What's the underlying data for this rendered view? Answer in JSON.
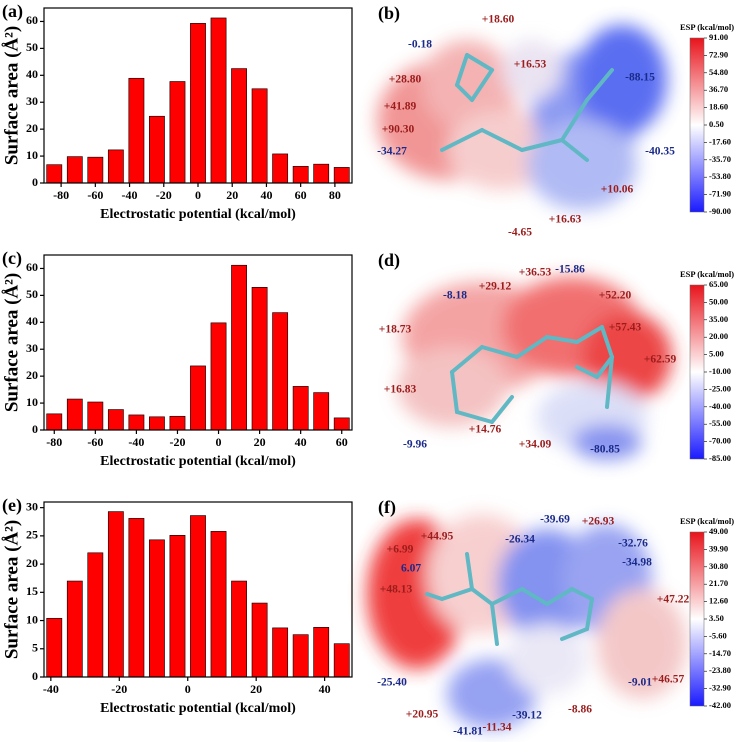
{
  "chart_data": [
    {
      "type": "histogram",
      "title": "(a)",
      "x_label": "Electrostatic potential (kcal/mol)",
      "y_label": "Surface area (Å²)",
      "bins": [
        -90,
        -78,
        -66,
        -54,
        -42,
        -30,
        -18,
        -6,
        6,
        18,
        30,
        42,
        54,
        66,
        78,
        90
      ],
      "values": [
        6.8,
        9.8,
        9.6,
        12.3,
        38.9,
        24.8,
        37.7,
        59.3,
        61.3,
        42.5,
        35.0,
        10.8,
        6.2,
        7.0,
        5.8
      ],
      "color": "#ff0000",
      "xlim": [
        -90,
        90
      ],
      "ylim": [
        0,
        65
      ],
      "xticks": [
        -80,
        -60,
        -40,
        -20,
        0,
        20,
        40,
        60,
        80
      ],
      "yticks": [
        0,
        10,
        20,
        30,
        40,
        50,
        60
      ]
    },
    {
      "type": "histogram",
      "title": "(c)",
      "x_label": "Electrostatic potential (kcal/mol)",
      "y_label": "Surface area (Å²)",
      "bins": [
        -85,
        -75,
        -65,
        -55,
        -45,
        -35,
        -25,
        -15,
        -5,
        5,
        15,
        25,
        35,
        45,
        55,
        65
      ],
      "values": [
        6.0,
        11.5,
        10.4,
        7.6,
        5.6,
        4.9,
        5.1,
        23.8,
        39.8,
        61.2,
        53.0,
        43.6,
        16.2,
        13.9,
        4.5
      ],
      "color": "#ff0000",
      "xlim": [
        -85,
        65
      ],
      "ylim": [
        0,
        65
      ],
      "xticks": [
        -80,
        -60,
        -40,
        -20,
        0,
        20,
        40,
        60
      ],
      "yticks": [
        0,
        10,
        20,
        30,
        40,
        50,
        60
      ]
    },
    {
      "type": "histogram",
      "title": "(e)",
      "x_label": "Electrostatic potential (kcal/mol)",
      "y_label": "Surface area (Å²)",
      "bins": [
        -42,
        -36,
        -30,
        -24,
        -18,
        -12,
        -6,
        0,
        6,
        12,
        18,
        24,
        30,
        36,
        42,
        48
      ],
      "values": [
        10.4,
        17.0,
        22.0,
        29.3,
        28.1,
        24.3,
        25.1,
        28.6,
        25.8,
        17.0,
        13.1,
        8.7,
        7.5,
        8.8,
        5.9
      ],
      "color": "#ff0000",
      "xlim": [
        -42,
        48
      ],
      "ylim": [
        0,
        31
      ],
      "xticks": [
        -40,
        -20,
        0,
        20,
        40
      ],
      "yticks": [
        0,
        5,
        10,
        15,
        20,
        25,
        30
      ]
    }
  ],
  "esp_maps": [
    {
      "label": "(b)",
      "colorbar_title": "ESP (kcal/mol)",
      "colorbar_ticks": [
        {
          "value": 91,
          "label": "91.00"
        },
        {
          "value": 72.9,
          "label": "72.90"
        },
        {
          "value": 54.8,
          "label": "54.80"
        },
        {
          "value": 36.7,
          "label": "36.70"
        },
        {
          "value": 18.6,
          "label": "18.60"
        },
        {
          "value": 0.5,
          "label": "0.50"
        },
        {
          "value": -17.6,
          "label": "-17.60"
        },
        {
          "value": -35.7,
          "label": "-35.70"
        },
        {
          "value": -53.8,
          "label": "-53.80"
        },
        {
          "value": -71.9,
          "label": "-71.90"
        },
        {
          "value": -90,
          "label": "-90.00"
        }
      ],
      "annotations": [
        {
          "text": "+18.60",
          "color": "#9b1c1c"
        },
        {
          "text": "-0.18",
          "color": "#1a2a8a"
        },
        {
          "text": "+16.53",
          "color": "#9b1c1c"
        },
        {
          "text": "-88.15",
          "color": "#1a2a8a"
        },
        {
          "text": "+28.80",
          "color": "#9b1c1c"
        },
        {
          "text": "+41.89",
          "color": "#9b1c1c"
        },
        {
          "text": "+90.30",
          "color": "#9b1c1c"
        },
        {
          "text": "-34.27",
          "color": "#1a2a8a"
        },
        {
          "text": "-40.35",
          "color": "#1a2a8a"
        },
        {
          "text": "+10.06",
          "color": "#9b1c1c"
        },
        {
          "text": "+16.63",
          "color": "#9b1c1c"
        },
        {
          "text": "-4.65",
          "color": "#9b1c1c"
        }
      ]
    },
    {
      "label": "(d)",
      "colorbar_title": "ESP (kcal/mol)",
      "colorbar_ticks": [
        {
          "value": 65,
          "label": "65.00"
        },
        {
          "value": 50,
          "label": "50.00"
        },
        {
          "value": 35,
          "label": "35.00"
        },
        {
          "value": 20,
          "label": "20.00"
        },
        {
          "value": 5,
          "label": "5.00"
        },
        {
          "value": -10,
          "label": "-10.00"
        },
        {
          "value": -25,
          "label": "-25.00"
        },
        {
          "value": -40,
          "label": "-40.00"
        },
        {
          "value": -55,
          "label": "-55.00"
        },
        {
          "value": -70,
          "label": "-70.00"
        },
        {
          "value": -85,
          "label": "-85.00"
        }
      ],
      "annotations": [
        {
          "text": "-15.86",
          "color": "#1a2a8a"
        },
        {
          "text": "+36.53",
          "color": "#9b1c1c"
        },
        {
          "text": "+29.12",
          "color": "#9b1c1c"
        },
        {
          "text": "-8.18",
          "color": "#1a2a8a"
        },
        {
          "text": "+52.20",
          "color": "#9b1c1c"
        },
        {
          "text": "+57.43",
          "color": "#9b1c1c"
        },
        {
          "text": "+18.73",
          "color": "#9b1c1c"
        },
        {
          "text": "+62.59",
          "color": "#9b1c1c"
        },
        {
          "text": "+16.83",
          "color": "#9b1c1c"
        },
        {
          "text": "-9.96",
          "color": "#1a2a8a"
        },
        {
          "text": "+14.76",
          "color": "#9b1c1c"
        },
        {
          "text": "+34.09",
          "color": "#9b1c1c"
        },
        {
          "text": "-80.85",
          "color": "#1a2a8a"
        }
      ]
    },
    {
      "label": "(f)",
      "colorbar_title": "ESP (kcal/mol)",
      "colorbar_ticks": [
        {
          "value": 49,
          "label": "49.00"
        },
        {
          "value": 39.9,
          "label": "39.90"
        },
        {
          "value": 30.8,
          "label": "30.80"
        },
        {
          "value": 21.7,
          "label": "21.70"
        },
        {
          "value": 12.6,
          "label": "12.60"
        },
        {
          "value": 3.5,
          "label": "3.50"
        },
        {
          "value": -5.6,
          "label": "-5.60"
        },
        {
          "value": -14.7,
          "label": "-14.70"
        },
        {
          "value": -23.8,
          "label": "-23.80"
        },
        {
          "value": -32.9,
          "label": "-32.90"
        },
        {
          "value": -42,
          "label": "-42.00"
        }
      ],
      "annotations": [
        {
          "text": "-39.69",
          "color": "#1a2a8a"
        },
        {
          "text": "+26.93",
          "color": "#9b1c1c"
        },
        {
          "text": "+44.95",
          "color": "#9b1c1c"
        },
        {
          "text": "-26.34",
          "color": "#1a2a8a"
        },
        {
          "text": "-32.76",
          "color": "#1a2a8a"
        },
        {
          "text": "+6.99",
          "color": "#9b1c1c"
        },
        {
          "text": "-34.98",
          "color": "#1a2a8a"
        },
        {
          "text": "6.07",
          "color": "#1a2a8a"
        },
        {
          "text": "+48.13",
          "color": "#9b1c1c"
        },
        {
          "text": "+47.22",
          "color": "#9b1c1c"
        },
        {
          "text": "+46.57",
          "color": "#9b1c1c"
        },
        {
          "text": "-25.40",
          "color": "#1a2a8a"
        },
        {
          "text": "-9.01",
          "color": "#1a2a8a"
        },
        {
          "text": "-8.86",
          "color": "#9b1c1c"
        },
        {
          "text": "+20.95",
          "color": "#9b1c1c"
        },
        {
          "text": "-39.12",
          "color": "#1a2a8a"
        },
        {
          "text": "-11.34",
          "color": "#9b1c1c"
        },
        {
          "text": "-41.81",
          "color": "#1a2a8a"
        }
      ]
    }
  ]
}
